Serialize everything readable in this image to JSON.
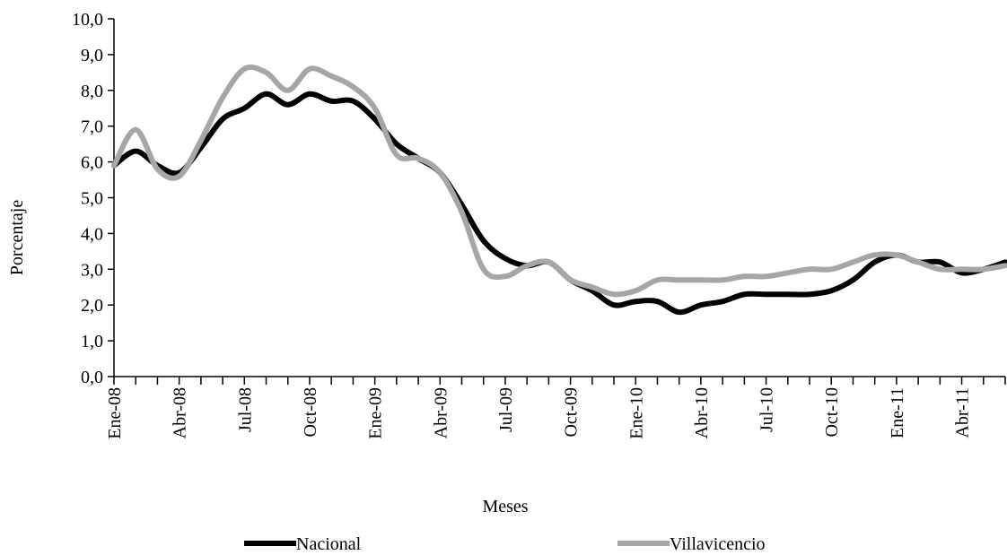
{
  "chart_data": {
    "type": "line",
    "x_label": "Meses",
    "y_label": "Porcentaje",
    "categories": [
      "Ene-08",
      null,
      null,
      "Abr-08",
      null,
      null,
      "Jul-08",
      null,
      null,
      "Oct-08",
      null,
      null,
      "Ene-09",
      null,
      null,
      "Abr-09",
      null,
      null,
      "Jul-09",
      null,
      null,
      "Oct-09",
      null,
      null,
      "Ene-10",
      null,
      null,
      "Abr-10",
      null,
      null,
      "Jul-10",
      null,
      null,
      "Oct-10",
      null,
      null,
      "Ene-11",
      null,
      null,
      "Abr-11",
      null,
      null
    ],
    "series": [
      {
        "name": "Nacional",
        "color": "#000000",
        "values": [
          5.9,
          6.3,
          5.9,
          5.7,
          6.4,
          7.2,
          7.5,
          7.9,
          7.6,
          7.9,
          7.7,
          7.7,
          7.2,
          6.5,
          6.1,
          5.7,
          4.8,
          3.8,
          3.3,
          3.1,
          3.2,
          2.7,
          2.4,
          2.0,
          2.1,
          2.1,
          1.8,
          2.0,
          2.1,
          2.3,
          2.3,
          2.3,
          2.3,
          2.4,
          2.7,
          3.2,
          3.4,
          3.2,
          3.2,
          2.9,
          3.0,
          3.2
        ]
      },
      {
        "name": "Villavicencio",
        "color": "#a6a6a6",
        "values": [
          5.9,
          6.9,
          5.8,
          5.6,
          6.6,
          7.8,
          8.6,
          8.5,
          8.0,
          8.6,
          8.4,
          8.1,
          7.5,
          6.2,
          6.1,
          5.7,
          4.6,
          3.0,
          2.8,
          3.1,
          3.2,
          2.7,
          2.5,
          2.3,
          2.4,
          2.7,
          2.7,
          2.7,
          2.7,
          2.8,
          2.8,
          2.9,
          3.0,
          3.0,
          3.2,
          3.4,
          3.4,
          3.2,
          3.0,
          3.0,
          3.0,
          3.1
        ]
      }
    ],
    "ylim": [
      0,
      10
    ],
    "yticks": [
      {
        "value": 0,
        "label": "0,0"
      },
      {
        "value": 1,
        "label": "1,0"
      },
      {
        "value": 2,
        "label": "2,0"
      },
      {
        "value": 3,
        "label": "3,0"
      },
      {
        "value": 4,
        "label": "4,0"
      },
      {
        "value": 5,
        "label": "5,0"
      },
      {
        "value": 6,
        "label": "6,0"
      },
      {
        "value": 7,
        "label": "7,0"
      },
      {
        "value": 8,
        "label": "8,0"
      },
      {
        "value": 9,
        "label": "9,0"
      },
      {
        "value": 10,
        "label": "10,0"
      }
    ],
    "grid": false,
    "legend": "bottom"
  }
}
